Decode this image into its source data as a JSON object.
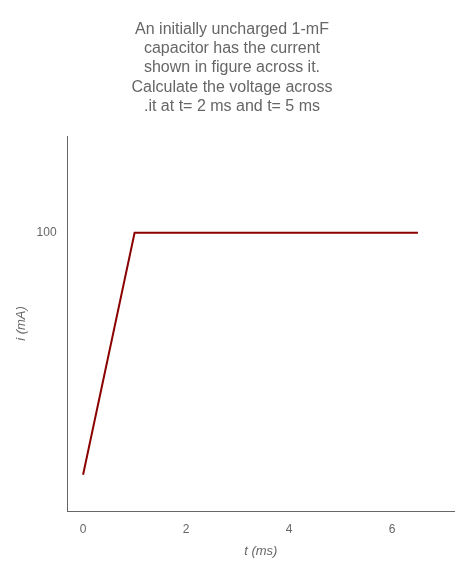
{
  "chart_data": {
    "type": "line",
    "title": [
      "An initially uncharged 1-mF",
      "capacitor has the current",
      "shown in figure across it.",
      "Calculate the voltage across",
      ".it at t= 2 ms and t= 5 ms"
    ],
    "x": [
      0,
      0,
      1,
      3,
      6.5
    ],
    "values": [
      0,
      0,
      100,
      100,
      100
    ],
    "color": "#8b0000",
    "x_label": "t (ms)",
    "y_label": "i (mA)",
    "xlim": [
      -0.3,
      7.2
    ],
    "xticks": [
      0,
      2,
      4,
      6
    ],
    "ylim": [
      -15,
      140
    ],
    "yticks": [
      100
    ],
    "grid": false
  }
}
